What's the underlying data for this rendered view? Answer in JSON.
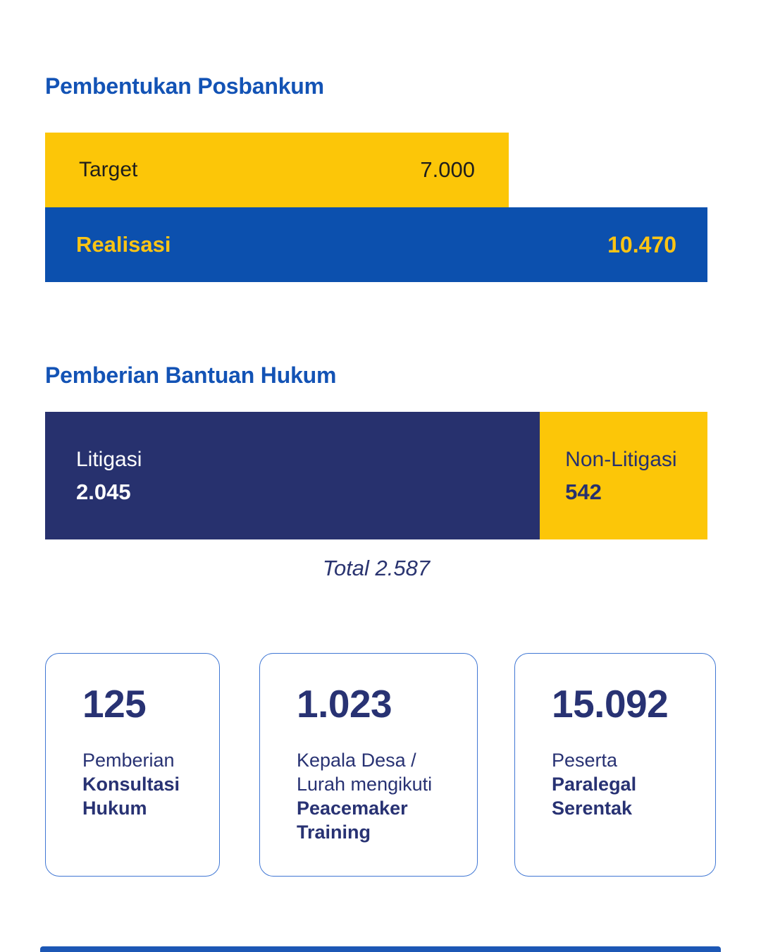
{
  "colors": {
    "title_blue": "#1353B5",
    "accent_yellow": "#FCC608",
    "accent_blue": "#0C50AE",
    "navy": "#27316E",
    "dark_text": "#1F1E1C",
    "value_yellow": "#FCC414",
    "card_border": "#4077D4",
    "footer_blue": "#1C57B5"
  },
  "section_posbankum": {
    "title": "Pembentukan Posbankum",
    "target_label": "Target",
    "target_value": "7.000",
    "realisasi_label": "Realisasi",
    "realisasi_value": "10.470"
  },
  "section_bantuan": {
    "title": "Pemberian Bantuan Hukum",
    "litigasi_label": "Litigasi",
    "litigasi_value": "2.045",
    "nonlitigasi_label": "Non-Litigasi",
    "nonlitigasi_value": "542",
    "total_text": "Total 2.587"
  },
  "stat_cards": [
    {
      "value": "125",
      "text_regular": "Pemberian",
      "text_bold": "Konsultasi Hukum"
    },
    {
      "value": "1.023",
      "text_regular": "Kepala Desa / Lurah mengikuti",
      "text_bold": "Peacemaker Training"
    },
    {
      "value": "15.092",
      "text_regular": "Peserta",
      "text_bold": "Paralegal Serentak"
    }
  ],
  "chart_data": [
    {
      "type": "bar",
      "title": "Pembentukan Posbankum",
      "orientation": "horizontal",
      "categories": [
        "Target",
        "Realisasi"
      ],
      "values": [
        7000,
        10470
      ],
      "value_labels": [
        "7.000",
        "10.470"
      ],
      "colors": [
        "#FCC608",
        "#0C50AE"
      ],
      "xlabel": "",
      "ylabel": "",
      "grid": false,
      "legend": false
    },
    {
      "type": "bar",
      "title": "Pemberian Bantuan Hukum",
      "subtype": "stacked-horizontal",
      "categories": [
        "Litigasi",
        "Non-Litigasi"
      ],
      "values": [
        2045,
        542
      ],
      "value_labels": [
        "2.045",
        "542"
      ],
      "total": 2587,
      "total_label": "Total 2.587",
      "colors": [
        "#27316E",
        "#FCC608"
      ],
      "grid": false,
      "legend": false
    },
    {
      "type": "table",
      "title": "Statistik bantuan hukum",
      "rows": [
        [
          "125",
          "Pemberian Konsultasi Hukum"
        ],
        [
          "1.023",
          "Kepala Desa / Lurah mengikuti Peacemaker Training"
        ],
        [
          "15.092",
          "Peserta Paralegal Serentak"
        ]
      ]
    }
  ]
}
